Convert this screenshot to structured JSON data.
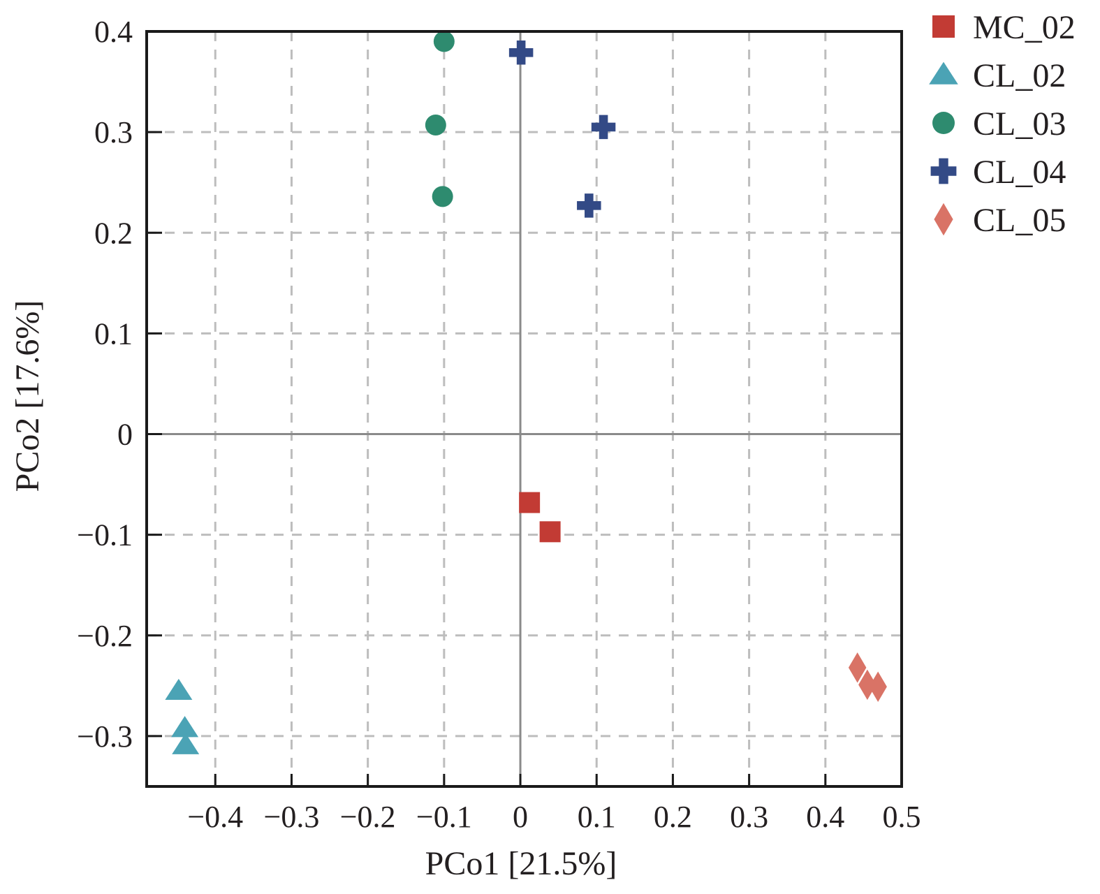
{
  "chart_data": {
    "type": "scatter",
    "xlabel": "PCo1 [21.5%]",
    "ylabel": "PCo2 [17.6%]",
    "xlim": [
      -0.49,
      0.5
    ],
    "ylim": [
      -0.35,
      0.4
    ],
    "xticks": [
      -0.4,
      -0.3,
      -0.2,
      -0.1,
      0,
      0.1,
      0.2,
      0.3,
      0.4,
      0.5
    ],
    "xtick_labels": [
      "−0.4",
      "−0.3",
      "−0.2",
      "−0.1",
      "0",
      "0.1",
      "0.2",
      "0.3",
      "0.4",
      "0.5"
    ],
    "yticks": [
      0.4,
      0.3,
      0.2,
      0.1,
      0,
      -0.1,
      -0.2,
      -0.3
    ],
    "ytick_labels": [
      "0.4",
      "0.3",
      "0.2",
      "0.1",
      "0",
      "−0.1",
      "−0.2",
      "−0.3"
    ],
    "grid": true,
    "grid_style": "dashed",
    "zero_lines": true,
    "legend_position": "outside-top-right",
    "series": [
      {
        "name": "MC_02",
        "marker": "square",
        "color": "#c23b34",
        "points": [
          [
            0.012,
            -0.068
          ],
          [
            0.039,
            -0.097
          ]
        ]
      },
      {
        "name": "CL_02",
        "marker": "triangle",
        "color": "#4ba3b5",
        "points": [
          [
            -0.448,
            -0.255
          ],
          [
            -0.44,
            -0.292
          ],
          [
            -0.439,
            -0.309
          ]
        ]
      },
      {
        "name": "CL_03",
        "marker": "circle",
        "color": "#2e8b6f",
        "points": [
          [
            -0.1,
            0.39
          ],
          [
            -0.111,
            0.307
          ],
          [
            -0.102,
            0.236
          ]
        ]
      },
      {
        "name": "CL_04",
        "marker": "plus",
        "color": "#334a86",
        "points": [
          [
            0.001,
            0.379
          ],
          [
            0.109,
            0.305
          ],
          [
            0.09,
            0.227
          ]
        ]
      },
      {
        "name": "CL_05",
        "marker": "diamond",
        "color": "#d97366",
        "points": [
          [
            0.442,
            -0.232
          ],
          [
            0.455,
            -0.249
          ],
          [
            0.469,
            -0.251
          ]
        ]
      }
    ]
  }
}
